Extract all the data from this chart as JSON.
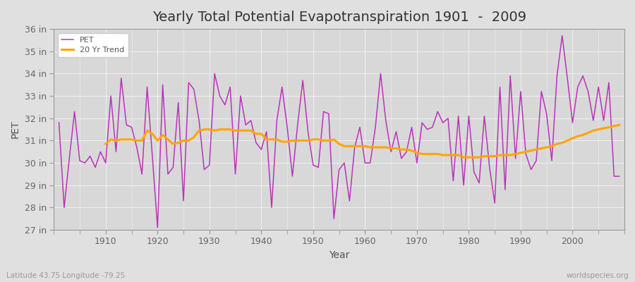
{
  "title": "Yearly Total Potential Evapotranspiration 1901  -  2009",
  "xlabel": "Year",
  "ylabel": "PET",
  "subtitle_left": "Latitude 43.75 Longitude -79.25",
  "subtitle_right": "worldspecies.org",
  "years": [
    1901,
    1902,
    1903,
    1904,
    1905,
    1906,
    1907,
    1908,
    1909,
    1910,
    1911,
    1912,
    1913,
    1914,
    1915,
    1916,
    1917,
    1918,
    1919,
    1920,
    1921,
    1922,
    1923,
    1924,
    1925,
    1926,
    1927,
    1928,
    1929,
    1930,
    1931,
    1932,
    1933,
    1934,
    1935,
    1936,
    1937,
    1938,
    1939,
    1940,
    1941,
    1942,
    1943,
    1944,
    1945,
    1946,
    1947,
    1948,
    1949,
    1950,
    1951,
    1952,
    1953,
    1954,
    1955,
    1956,
    1957,
    1958,
    1959,
    1960,
    1961,
    1962,
    1963,
    1964,
    1965,
    1966,
    1967,
    1968,
    1969,
    1970,
    1971,
    1972,
    1973,
    1974,
    1975,
    1976,
    1977,
    1978,
    1979,
    1980,
    1981,
    1982,
    1983,
    1984,
    1985,
    1986,
    1987,
    1988,
    1989,
    1990,
    1991,
    1992,
    1993,
    1994,
    1995,
    1996,
    1997,
    1998,
    1999,
    2000,
    2001,
    2002,
    2003,
    2004,
    2005,
    2006,
    2007,
    2008,
    2009
  ],
  "pet": [
    31.8,
    28.0,
    30.2,
    32.3,
    30.1,
    30.0,
    30.3,
    29.8,
    30.5,
    30.0,
    33.0,
    30.5,
    33.8,
    31.7,
    31.6,
    30.7,
    29.5,
    33.4,
    30.3,
    27.1,
    33.5,
    29.5,
    29.8,
    32.7,
    28.3,
    33.6,
    33.3,
    31.9,
    29.7,
    29.9,
    34.0,
    33.0,
    32.6,
    33.4,
    29.5,
    33.0,
    31.7,
    31.9,
    30.9,
    30.6,
    31.4,
    28.0,
    31.9,
    33.4,
    31.6,
    29.4,
    31.7,
    33.7,
    31.4,
    29.9,
    29.8,
    32.3,
    32.2,
    27.5,
    29.7,
    30.0,
    28.3,
    30.7,
    31.6,
    30.0,
    30.0,
    31.6,
    34.0,
    31.9,
    30.5,
    31.4,
    30.2,
    30.5,
    31.6,
    30.0,
    31.8,
    31.5,
    31.6,
    32.3,
    31.8,
    32.0,
    29.2,
    32.1,
    29.0,
    32.1,
    29.6,
    29.1,
    32.1,
    29.8,
    28.2,
    33.4,
    28.8,
    33.9,
    30.2,
    33.2,
    30.4,
    29.7,
    30.1,
    33.2,
    32.2,
    30.1,
    33.9,
    35.7,
    33.8,
    31.8,
    33.4,
    33.9,
    33.2,
    31.9,
    33.4,
    31.9,
    33.6,
    29.4,
    29.4
  ],
  "trend_years": [
    1910,
    1911,
    1912,
    1913,
    1914,
    1915,
    1916,
    1917,
    1918,
    1919,
    1920,
    1921,
    1922,
    1923,
    1924,
    1925,
    1926,
    1927,
    1928,
    1929,
    1930,
    1931,
    1932,
    1933,
    1934,
    1935,
    1936,
    1937,
    1938,
    1939,
    1940,
    1941,
    1942,
    1943,
    1944,
    1945,
    1946,
    1947,
    1948,
    1949,
    1950,
    1951,
    1952,
    1953,
    1954,
    1955,
    1956,
    1957,
    1958,
    1959,
    1960,
    1961,
    1962,
    1963,
    1964,
    1965,
    1966,
    1967,
    1968,
    1969,
    1970,
    1971,
    1972,
    1973,
    1974,
    1975,
    1976,
    1977,
    1978,
    1979,
    1980,
    1981,
    1982,
    1983,
    1984,
    1985,
    1986,
    1987,
    1988,
    1989,
    1990,
    1991,
    1992,
    1993,
    1994,
    1995,
    1996,
    1997,
    1998,
    1999,
    2000,
    2001,
    2002,
    2003,
    2004,
    2005,
    2006,
    2007,
    2008,
    2009
  ],
  "trend": [
    30.85,
    31.05,
    31.0,
    31.05,
    31.05,
    31.05,
    31.0,
    31.0,
    31.45,
    31.3,
    31.0,
    31.25,
    31.05,
    30.85,
    30.9,
    31.0,
    31.0,
    31.15,
    31.45,
    31.5,
    31.5,
    31.45,
    31.5,
    31.5,
    31.5,
    31.45,
    31.45,
    31.45,
    31.45,
    31.3,
    31.3,
    31.05,
    31.05,
    31.05,
    30.95,
    30.95,
    31.0,
    31.0,
    31.0,
    31.0,
    31.05,
    31.05,
    31.0,
    31.0,
    31.05,
    30.85,
    30.75,
    30.75,
    30.75,
    30.75,
    30.75,
    30.7,
    30.7,
    30.7,
    30.7,
    30.65,
    30.65,
    30.6,
    30.6,
    30.55,
    30.45,
    30.4,
    30.4,
    30.4,
    30.4,
    30.35,
    30.35,
    30.35,
    30.35,
    30.25,
    30.25,
    30.25,
    30.25,
    30.3,
    30.3,
    30.3,
    30.35,
    30.35,
    30.35,
    30.4,
    30.45,
    30.5,
    30.55,
    30.6,
    30.65,
    30.7,
    30.75,
    30.85,
    30.9,
    31.0,
    31.1,
    31.2,
    31.25,
    31.35,
    31.45,
    31.5,
    31.55,
    31.6,
    31.65,
    31.7
  ],
  "pet_color": "#bb33bb",
  "trend_color": "#ffa500",
  "fig_bg_color": "#e0e0e0",
  "plot_bg_color": "#d8d8d8",
  "grid_color": "#f0f0f0",
  "ylim_min": 27,
  "ylim_max": 36,
  "yticks": [
    27,
    28,
    29,
    30,
    31,
    32,
    33,
    34,
    35,
    36
  ],
  "ytick_labels": [
    "27 in",
    "28 in",
    "29 in",
    "30 in",
    "31 in",
    "32 in",
    "33 in",
    "34 in",
    "35 in",
    "36 in"
  ],
  "xticks": [
    1910,
    1920,
    1930,
    1940,
    1950,
    1960,
    1970,
    1980,
    1990,
    2000
  ],
  "legend_pet": "PET",
  "legend_trend": "20 Yr Trend",
  "title_fontsize": 14,
  "axis_label_fontsize": 10,
  "tick_fontsize": 9,
  "legend_fontsize": 8
}
